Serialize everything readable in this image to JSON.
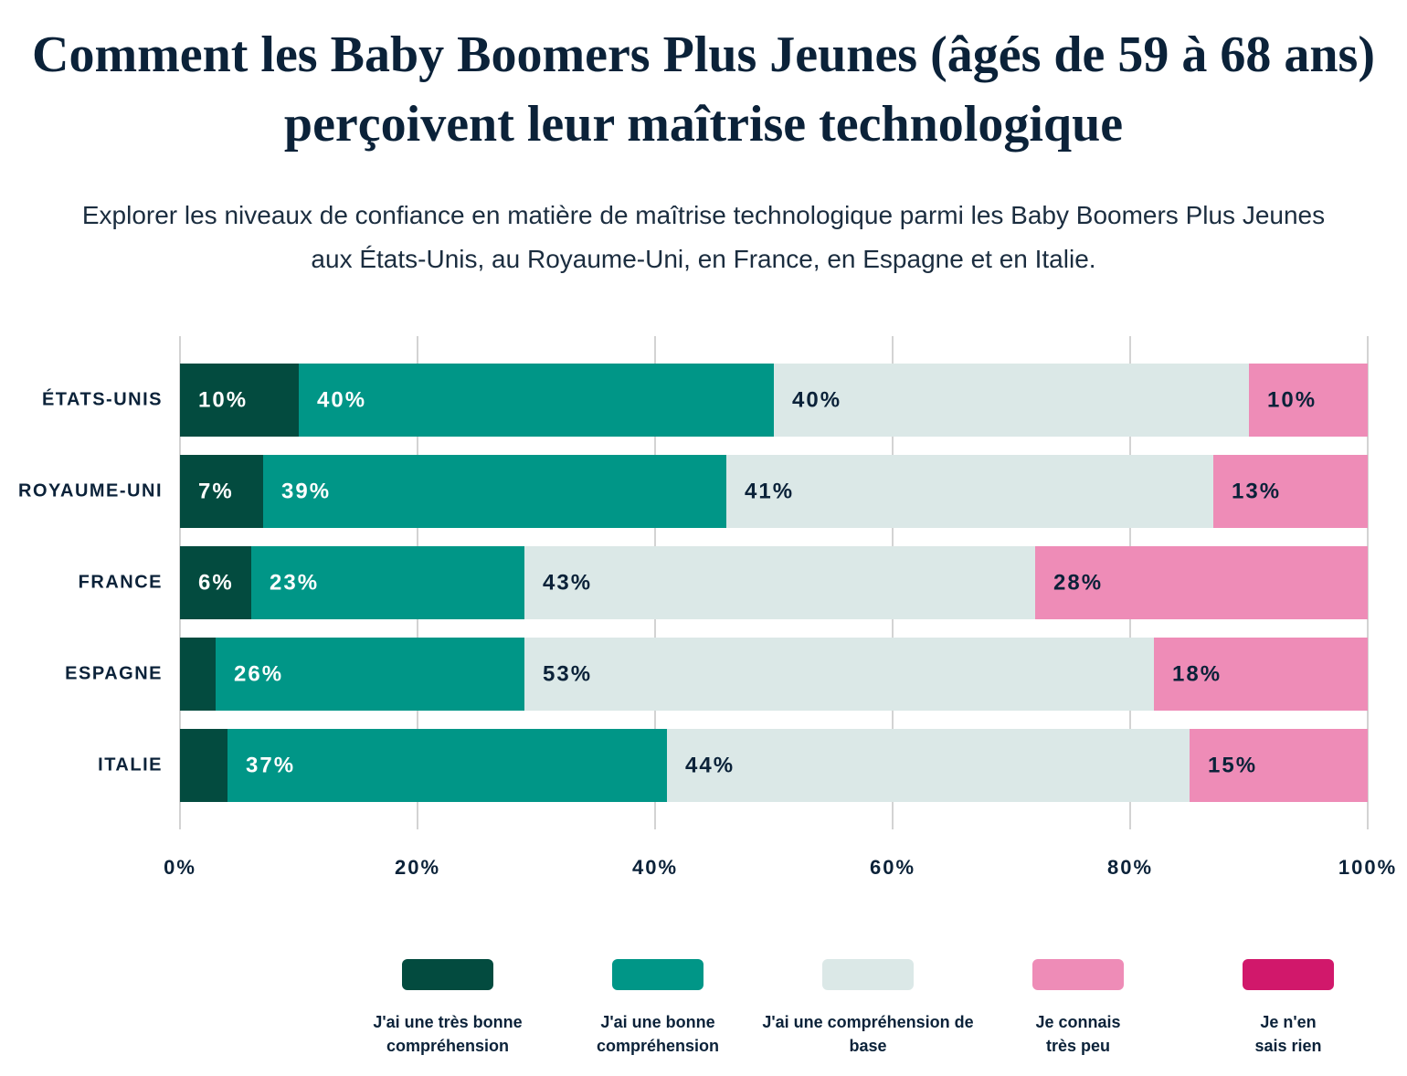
{
  "chart_data": {
    "type": "stacked-barh",
    "title": "Comment les Baby Boomers Plus Jeunes (âgés de 59 à 68 ans) perçoivent leur maîtrise technologique",
    "subtitle": "Explorer les niveaux de confiance en matière de maîtrise technologique parmi les Baby Boomers Plus Jeunes aux États-Unis, au Royaume-Uni, en France, en Espagne et en Italie.",
    "categories": [
      "ÉTATS-UNIS",
      "ROYAUME-UNI",
      "FRANCE",
      "ESPAGNE",
      "ITALIE"
    ],
    "series": [
      {
        "name": "J'ai une très bonne compréhension",
        "color": "#034b3f",
        "values": [
          10,
          7,
          6,
          3,
          4
        ],
        "value_labels": [
          "10%",
          "7%",
          "6%",
          null,
          null
        ]
      },
      {
        "name": "J'ai une bonne compréhension",
        "color": "#009687",
        "values": [
          40,
          39,
          23,
          26,
          37
        ],
        "value_labels": [
          "40%",
          "39%",
          "23%",
          "26%",
          "37%"
        ]
      },
      {
        "name": "J'ai une compréhension de base",
        "color": "#dbe8e7",
        "values": [
          40,
          41,
          43,
          53,
          44
        ],
        "value_labels": [
          "40%",
          "41%",
          "43%",
          "53%",
          "44%"
        ]
      },
      {
        "name": "Je connais très peu",
        "color": "#ee8cb7",
        "values": [
          10,
          13,
          28,
          18,
          15
        ],
        "value_labels": [
          "10%",
          "13%",
          "28%",
          "18%",
          "15%"
        ]
      },
      {
        "name": "Je n'en sais rien",
        "color": "#d1186b",
        "values": [
          0,
          0,
          0,
          0,
          0
        ]
      }
    ],
    "xlim": [
      0,
      100
    ],
    "xticks": [
      {
        "value": 0,
        "label": "0%"
      },
      {
        "value": 20,
        "label": "20%"
      },
      {
        "value": 40,
        "label": "40%"
      },
      {
        "value": 60,
        "label": "60%"
      },
      {
        "value": 80,
        "label": "80%"
      },
      {
        "value": 100,
        "label": "100%"
      }
    ],
    "grid": true,
    "legend": "bottom"
  }
}
